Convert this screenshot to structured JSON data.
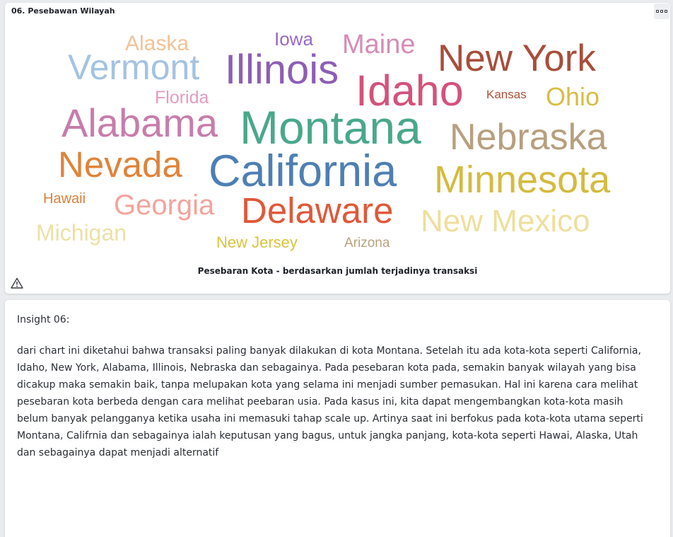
{
  "panel": {
    "title": "06. Pesebawan Wilayah",
    "menu_icon": "more-options-icon",
    "caption": "Pesebaran Kota - berdasarkan jumlah terjadinya transaksi",
    "warning_icon": "warning-icon"
  },
  "chart_data": {
    "type": "wordcloud",
    "title": "Pesebaran Kota - berdasarkan jumlah terjadinya transaksi",
    "words": [
      {
        "text": "Montana",
        "weight": 100,
        "color": "#4aa88a"
      },
      {
        "text": "California",
        "weight": 94,
        "color": "#4e7fb3"
      },
      {
        "text": "Idaho",
        "weight": 90,
        "color": "#d4527a"
      },
      {
        "text": "Alabama",
        "weight": 85,
        "color": "#c77dab"
      },
      {
        "text": "Illinois",
        "weight": 84,
        "color": "#8d5eb5"
      },
      {
        "text": "New York",
        "weight": 82,
        "color": "#a84e3b"
      },
      {
        "text": "Minnesota",
        "weight": 80,
        "color": "#d4bb3f"
      },
      {
        "text": "Nebraska",
        "weight": 79,
        "color": "#b6a07f"
      },
      {
        "text": "Nevada",
        "weight": 78,
        "color": "#de843b"
      },
      {
        "text": "Delaware",
        "weight": 77,
        "color": "#e0583a"
      },
      {
        "text": "Vermont",
        "weight": 72,
        "color": "#a4c3e2"
      },
      {
        "text": "New Mexico",
        "weight": 68,
        "color": "#eedf9d"
      },
      {
        "text": "Georgia",
        "weight": 62,
        "color": "#f3a49c"
      },
      {
        "text": "Maine",
        "weight": 56,
        "color": "#d58cb6"
      },
      {
        "text": "Ohio",
        "weight": 54,
        "color": "#d7bd46"
      },
      {
        "text": "Michigan",
        "weight": 50,
        "color": "#ece1a6"
      },
      {
        "text": "Alaska",
        "weight": 45,
        "color": "#f3c296"
      },
      {
        "text": "Florida",
        "weight": 38,
        "color": "#e49bc1"
      },
      {
        "text": "Iowa",
        "weight": 36,
        "color": "#9a69bf"
      },
      {
        "text": "New Jersey",
        "weight": 34,
        "color": "#d9c33e"
      },
      {
        "text": "Hawaii",
        "weight": 30,
        "color": "#d9803a"
      },
      {
        "text": "Arizona",
        "weight": 29,
        "color": "#b6a27f"
      },
      {
        "text": "Kansas",
        "weight": 27,
        "color": "#b1513a"
      }
    ]
  },
  "insight": {
    "title": "Insight 06:",
    "body": "dari chart ini diketahui bahwa transaksi paling banyak dilakukan di kota Montana. Setelah itu ada kota-kota seperti California, Idaho, New York, Alabama, Illinois, Nebraska dan sebagainya. Pada pesebaran kota pada, semakin banyak wilayah yang bisa dicakup maka semakin baik, tanpa melupakan kota yang selama ini menjadi sumber pemasukan. Hal ini karena cara melihat pesebaran kota berbeda dengan cara melihat peebaran usia. Pada kasus ini, kita dapat mengembangkan kota-kota masih belum banyak pelangganya ketika usaha ini memasuki tahap scale up. Artinya saat ini berfokus pada kota-kota utama seperti Montana, Califrnia dan sebagainya ialah keputusan yang bagus, untuk jangka panjang, kota-kota seperti Hawai, Alaska, Utah dan sebagainya dapat menjadi alternatif"
  }
}
